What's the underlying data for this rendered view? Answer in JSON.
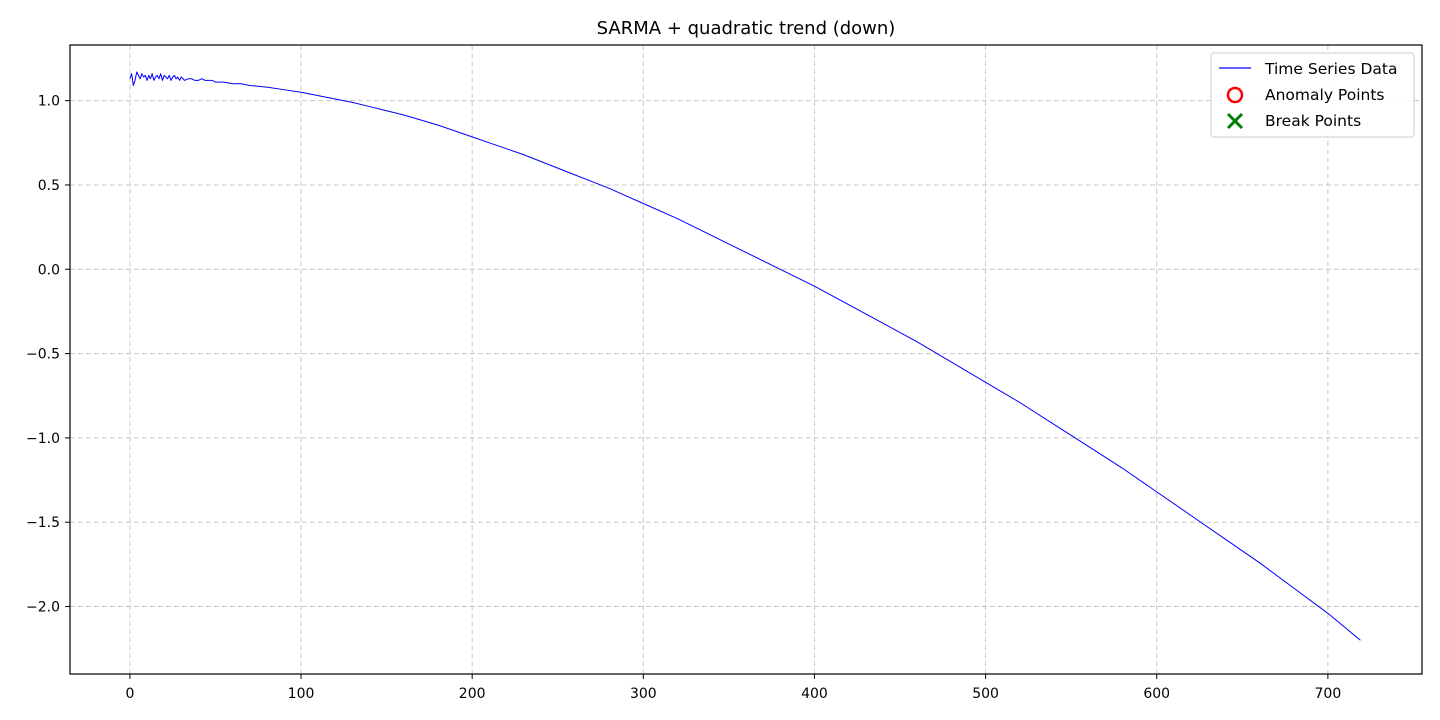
{
  "chart_data": {
    "type": "line",
    "title": "SARMA + quadratic trend (down)",
    "xlabel": "",
    "ylabel": "",
    "xlim": [
      -35,
      755
    ],
    "ylim": [
      -2.4,
      1.33
    ],
    "x_ticks": [
      0,
      100,
      200,
      300,
      400,
      500,
      600,
      700
    ],
    "y_ticks": [
      -2.0,
      -1.5,
      -1.0,
      -0.5,
      0.0,
      0.5,
      1.0
    ],
    "x_tick_labels": [
      "0",
      "100",
      "200",
      "300",
      "400",
      "500",
      "600",
      "700"
    ],
    "y_tick_labels": [
      "−2.0",
      "−1.5",
      "−1.0",
      "−0.5",
      "0.0",
      "0.5",
      "1.0"
    ],
    "grid": true,
    "legend_position": "top-right",
    "legend": [
      {
        "label": "Time Series Data",
        "marker": "line",
        "color": "#0000ff"
      },
      {
        "label": "Anomaly Points",
        "marker": "circle",
        "color": "#ff0000"
      },
      {
        "label": "Break Points",
        "marker": "x",
        "color": "#008000"
      }
    ],
    "series": [
      {
        "name": "Time Series Data",
        "color": "#0000ff",
        "x": [
          0,
          1,
          2,
          3,
          4,
          5,
          6,
          7,
          8,
          9,
          10,
          11,
          12,
          13,
          14,
          15,
          16,
          17,
          18,
          19,
          20,
          21,
          22,
          23,
          24,
          25,
          26,
          27,
          28,
          29,
          30,
          32,
          34,
          36,
          38,
          40,
          42,
          44,
          46,
          48,
          50,
          55,
          60,
          65,
          70,
          80,
          90,
          100,
          110,
          120,
          130,
          140,
          150,
          160,
          170,
          180,
          190,
          200,
          210,
          220,
          230,
          240,
          250,
          260,
          270,
          280,
          290,
          300,
          320,
          340,
          360,
          380,
          400,
          420,
          440,
          460,
          480,
          500,
          520,
          540,
          560,
          580,
          600,
          620,
          640,
          660,
          680,
          700,
          719
        ],
        "y": [
          1.13,
          1.16,
          1.09,
          1.12,
          1.17,
          1.15,
          1.13,
          1.16,
          1.14,
          1.15,
          1.12,
          1.15,
          1.13,
          1.16,
          1.12,
          1.14,
          1.15,
          1.13,
          1.16,
          1.12,
          1.15,
          1.14,
          1.13,
          1.15,
          1.12,
          1.14,
          1.15,
          1.13,
          1.14,
          1.12,
          1.14,
          1.12,
          1.13,
          1.13,
          1.12,
          1.12,
          1.13,
          1.12,
          1.12,
          1.12,
          1.11,
          1.11,
          1.1,
          1.1,
          1.09,
          1.08,
          1.065,
          1.05,
          1.03,
          1.01,
          0.99,
          0.965,
          0.94,
          0.915,
          0.885,
          0.855,
          0.82,
          0.785,
          0.75,
          0.715,
          0.68,
          0.64,
          0.6,
          0.56,
          0.52,
          0.48,
          0.435,
          0.39,
          0.3,
          0.2,
          0.1,
          0.0,
          -0.1,
          -0.21,
          -0.32,
          -0.43,
          -0.55,
          -0.67,
          -0.79,
          -0.92,
          -1.05,
          -1.18,
          -1.32,
          -1.46,
          -1.6,
          -1.74,
          -1.89,
          -2.04,
          -2.2
        ]
      }
    ]
  }
}
